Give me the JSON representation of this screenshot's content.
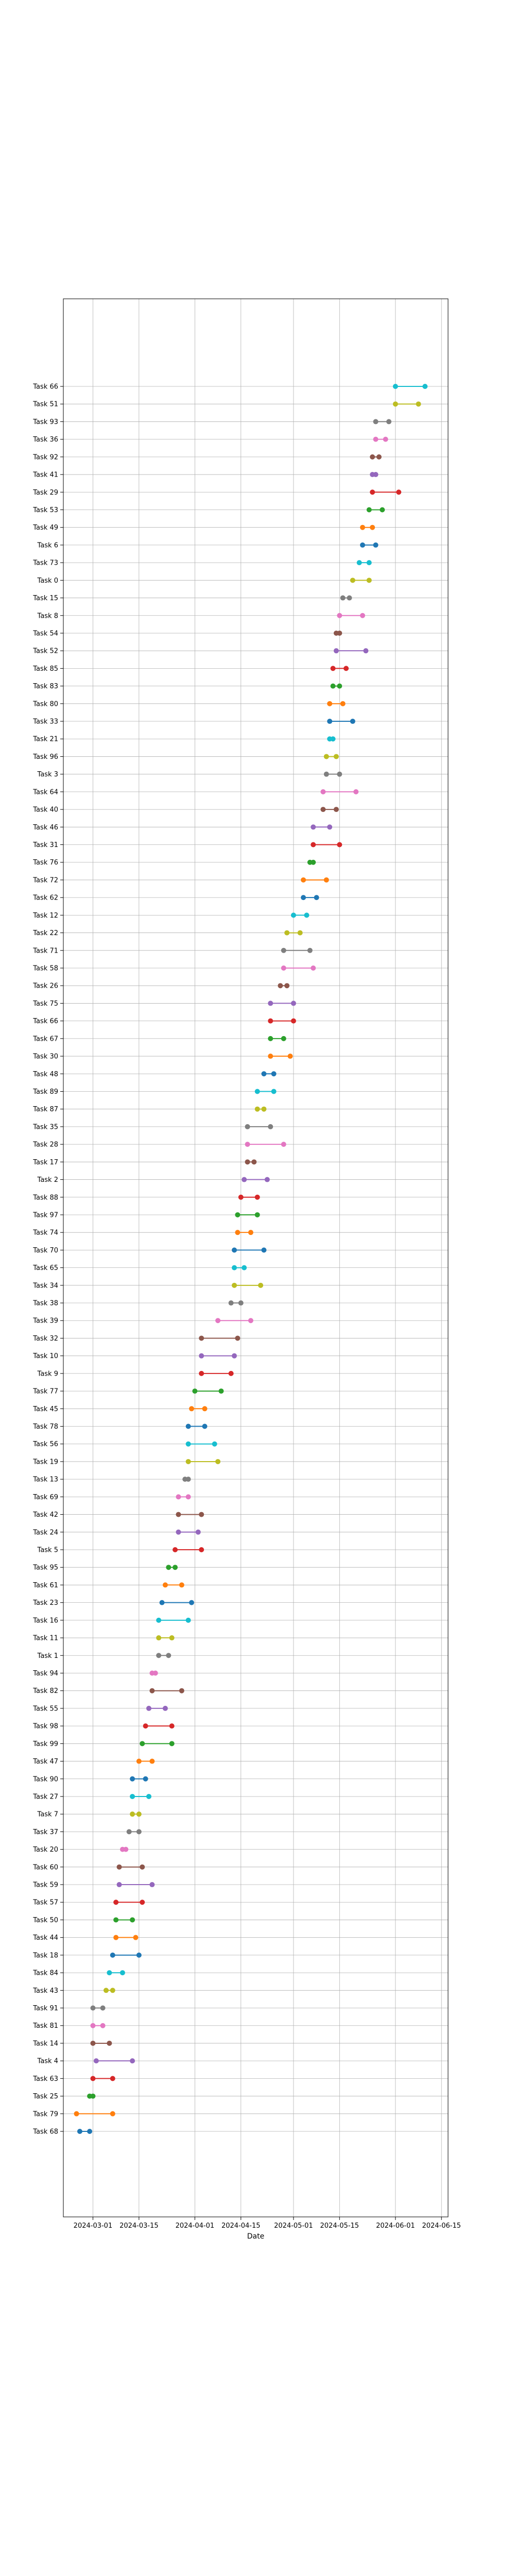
{
  "chart_data": {
    "type": "dumbbell",
    "title": "",
    "xlabel": "Date",
    "ylabel": "",
    "grid": true,
    "legend": "none",
    "x_axis": {
      "scale": "date",
      "range": [
        "2024-02-21",
        "2024-06-17"
      ],
      "ticks": [
        {
          "value": "2024-03-01",
          "label": "2024-03-01"
        },
        {
          "value": "2024-03-15",
          "label": "2024-03-15"
        },
        {
          "value": "2024-04-01",
          "label": "2024-04-01"
        },
        {
          "value": "2024-04-15",
          "label": "2024-04-15"
        },
        {
          "value": "2024-05-01",
          "label": "2024-05-01"
        },
        {
          "value": "2024-05-15",
          "label": "2024-05-15"
        },
        {
          "value": "2024-06-01",
          "label": "2024-06-01"
        },
        {
          "value": "2024-06-15",
          "label": "2024-06-15"
        }
      ]
    },
    "palette": [
      "#1f77b4",
      "#ff7f0e",
      "#2ca02c",
      "#d62728",
      "#9467bd",
      "#8c564b",
      "#e377c2",
      "#7f7f7f",
      "#bcbd22",
      "#17becf"
    ],
    "tasks": [
      {
        "name": "Task 66",
        "start": "2024-06-01",
        "end": "2024-06-10"
      },
      {
        "name": "Task 51",
        "start": "2024-06-01",
        "end": "2024-06-08"
      },
      {
        "name": "Task 93",
        "start": "2024-05-26",
        "end": "2024-05-30"
      },
      {
        "name": "Task 36",
        "start": "2024-05-26",
        "end": "2024-05-29"
      },
      {
        "name": "Task 92",
        "start": "2024-05-25",
        "end": "2024-05-27"
      },
      {
        "name": "Task 41",
        "start": "2024-05-25",
        "end": "2024-05-26"
      },
      {
        "name": "Task 29",
        "start": "2024-05-25",
        "end": "2024-06-02"
      },
      {
        "name": "Task 53",
        "start": "2024-05-24",
        "end": "2024-05-28"
      },
      {
        "name": "Task 49",
        "start": "2024-05-22",
        "end": "2024-05-25"
      },
      {
        "name": "Task 6",
        "start": "2024-05-22",
        "end": "2024-05-26"
      },
      {
        "name": "Task 73",
        "start": "2024-05-21",
        "end": "2024-05-24"
      },
      {
        "name": "Task 0",
        "start": "2024-05-19",
        "end": "2024-05-24"
      },
      {
        "name": "Task 15",
        "start": "2024-05-16",
        "end": "2024-05-18"
      },
      {
        "name": "Task 8",
        "start": "2024-05-15",
        "end": "2024-05-22"
      },
      {
        "name": "Task 54",
        "start": "2024-05-14",
        "end": "2024-05-15"
      },
      {
        "name": "Task 52",
        "start": "2024-05-14",
        "end": "2024-05-23"
      },
      {
        "name": "Task 85",
        "start": "2024-05-13",
        "end": "2024-05-17"
      },
      {
        "name": "Task 83",
        "start": "2024-05-13",
        "end": "2024-05-15"
      },
      {
        "name": "Task 80",
        "start": "2024-05-12",
        "end": "2024-05-16"
      },
      {
        "name": "Task 33",
        "start": "2024-05-12",
        "end": "2024-05-19"
      },
      {
        "name": "Task 21",
        "start": "2024-05-12",
        "end": "2024-05-13"
      },
      {
        "name": "Task 96",
        "start": "2024-05-11",
        "end": "2024-05-14"
      },
      {
        "name": "Task 3",
        "start": "2024-05-11",
        "end": "2024-05-15"
      },
      {
        "name": "Task 64",
        "start": "2024-05-10",
        "end": "2024-05-20"
      },
      {
        "name": "Task 40",
        "start": "2024-05-10",
        "end": "2024-05-14"
      },
      {
        "name": "Task 46",
        "start": "2024-05-07",
        "end": "2024-05-12"
      },
      {
        "name": "Task 31",
        "start": "2024-05-07",
        "end": "2024-05-15"
      },
      {
        "name": "Task 76",
        "start": "2024-05-06",
        "end": "2024-05-07"
      },
      {
        "name": "Task 72",
        "start": "2024-05-04",
        "end": "2024-05-11"
      },
      {
        "name": "Task 62",
        "start": "2024-05-04",
        "end": "2024-05-08"
      },
      {
        "name": "Task 12",
        "start": "2024-05-01",
        "end": "2024-05-05"
      },
      {
        "name": "Task 22",
        "start": "2024-04-29",
        "end": "2024-05-03"
      },
      {
        "name": "Task 71",
        "start": "2024-04-28",
        "end": "2024-05-06"
      },
      {
        "name": "Task 58",
        "start": "2024-04-28",
        "end": "2024-05-07"
      },
      {
        "name": "Task 26",
        "start": "2024-04-27",
        "end": "2024-04-29"
      },
      {
        "name": "Task 75",
        "start": "2024-04-24",
        "end": "2024-05-01"
      },
      {
        "name": "Task 66",
        "start": "2024-04-24",
        "end": "2024-05-01"
      },
      {
        "name": "Task 67",
        "start": "2024-04-24",
        "end": "2024-04-28"
      },
      {
        "name": "Task 30",
        "start": "2024-04-24",
        "end": "2024-04-30"
      },
      {
        "name": "Task 48",
        "start": "2024-04-22",
        "end": "2024-04-25"
      },
      {
        "name": "Task 89",
        "start": "2024-04-20",
        "end": "2024-04-25"
      },
      {
        "name": "Task 87",
        "start": "2024-04-20",
        "end": "2024-04-22"
      },
      {
        "name": "Task 35",
        "start": "2024-04-17",
        "end": "2024-04-24"
      },
      {
        "name": "Task 28",
        "start": "2024-04-17",
        "end": "2024-04-28"
      },
      {
        "name": "Task 17",
        "start": "2024-04-17",
        "end": "2024-04-19"
      },
      {
        "name": "Task 2",
        "start": "2024-04-16",
        "end": "2024-04-23"
      },
      {
        "name": "Task 88",
        "start": "2024-04-15",
        "end": "2024-04-20"
      },
      {
        "name": "Task 97",
        "start": "2024-04-14",
        "end": "2024-04-20"
      },
      {
        "name": "Task 74",
        "start": "2024-04-14",
        "end": "2024-04-18"
      },
      {
        "name": "Task 70",
        "start": "2024-04-13",
        "end": "2024-04-22"
      },
      {
        "name": "Task 65",
        "start": "2024-04-13",
        "end": "2024-04-16"
      },
      {
        "name": "Task 34",
        "start": "2024-04-13",
        "end": "2024-04-21"
      },
      {
        "name": "Task 38",
        "start": "2024-04-12",
        "end": "2024-04-15"
      },
      {
        "name": "Task 39",
        "start": "2024-04-08",
        "end": "2024-04-18"
      },
      {
        "name": "Task 32",
        "start": "2024-04-03",
        "end": "2024-04-14"
      },
      {
        "name": "Task 10",
        "start": "2024-04-03",
        "end": "2024-04-13"
      },
      {
        "name": "Task 9",
        "start": "2024-04-03",
        "end": "2024-04-12"
      },
      {
        "name": "Task 77",
        "start": "2024-04-01",
        "end": "2024-04-09"
      },
      {
        "name": "Task 45",
        "start": "2024-03-31",
        "end": "2024-04-04"
      },
      {
        "name": "Task 78",
        "start": "2024-03-30",
        "end": "2024-04-04"
      },
      {
        "name": "Task 56",
        "start": "2024-03-30",
        "end": "2024-04-07"
      },
      {
        "name": "Task 19",
        "start": "2024-03-30",
        "end": "2024-04-08"
      },
      {
        "name": "Task 13",
        "start": "2024-03-29",
        "end": "2024-03-30"
      },
      {
        "name": "Task 69",
        "start": "2024-03-27",
        "end": "2024-03-30"
      },
      {
        "name": "Task 42",
        "start": "2024-03-27",
        "end": "2024-04-03"
      },
      {
        "name": "Task 24",
        "start": "2024-03-27",
        "end": "2024-04-02"
      },
      {
        "name": "Task 5",
        "start": "2024-03-26",
        "end": "2024-04-03"
      },
      {
        "name": "Task 95",
        "start": "2024-03-24",
        "end": "2024-03-26"
      },
      {
        "name": "Task 61",
        "start": "2024-03-23",
        "end": "2024-03-28"
      },
      {
        "name": "Task 23",
        "start": "2024-03-22",
        "end": "2024-03-31"
      },
      {
        "name": "Task 16",
        "start": "2024-03-21",
        "end": "2024-03-30"
      },
      {
        "name": "Task 11",
        "start": "2024-03-21",
        "end": "2024-03-25"
      },
      {
        "name": "Task 1",
        "start": "2024-03-21",
        "end": "2024-03-24"
      },
      {
        "name": "Task 94",
        "start": "2024-03-19",
        "end": "2024-03-20"
      },
      {
        "name": "Task 82",
        "start": "2024-03-19",
        "end": "2024-03-28"
      },
      {
        "name": "Task 55",
        "start": "2024-03-18",
        "end": "2024-03-23"
      },
      {
        "name": "Task 98",
        "start": "2024-03-17",
        "end": "2024-03-25"
      },
      {
        "name": "Task 99",
        "start": "2024-03-16",
        "end": "2024-03-25"
      },
      {
        "name": "Task 47",
        "start": "2024-03-15",
        "end": "2024-03-19"
      },
      {
        "name": "Task 90",
        "start": "2024-03-13",
        "end": "2024-03-17"
      },
      {
        "name": "Task 27",
        "start": "2024-03-13",
        "end": "2024-03-18"
      },
      {
        "name": "Task 7",
        "start": "2024-03-13",
        "end": "2024-03-15"
      },
      {
        "name": "Task 37",
        "start": "2024-03-12",
        "end": "2024-03-15"
      },
      {
        "name": "Task 20",
        "start": "2024-03-10",
        "end": "2024-03-11"
      },
      {
        "name": "Task 60",
        "start": "2024-03-09",
        "end": "2024-03-16"
      },
      {
        "name": "Task 59",
        "start": "2024-03-09",
        "end": "2024-03-19"
      },
      {
        "name": "Task 57",
        "start": "2024-03-08",
        "end": "2024-03-16"
      },
      {
        "name": "Task 50",
        "start": "2024-03-08",
        "end": "2024-03-13"
      },
      {
        "name": "Task 44",
        "start": "2024-03-08",
        "end": "2024-03-14"
      },
      {
        "name": "Task 18",
        "start": "2024-03-07",
        "end": "2024-03-15"
      },
      {
        "name": "Task 84",
        "start": "2024-03-06",
        "end": "2024-03-10"
      },
      {
        "name": "Task 43",
        "start": "2024-03-05",
        "end": "2024-03-07"
      },
      {
        "name": "Task 91",
        "start": "2024-03-01",
        "end": "2024-03-04"
      },
      {
        "name": "Task 81",
        "start": "2024-03-01",
        "end": "2024-03-04"
      },
      {
        "name": "Task 14",
        "start": "2024-03-01",
        "end": "2024-03-06"
      },
      {
        "name": "Task 4",
        "start": "2024-03-02",
        "end": "2024-03-13"
      },
      {
        "name": "Task 63",
        "start": "2024-03-01",
        "end": "2024-03-07"
      },
      {
        "name": "Task 25",
        "start": "2024-02-29",
        "end": "2024-03-01"
      },
      {
        "name": "Task 79",
        "start": "2024-02-25",
        "end": "2024-03-07"
      },
      {
        "name": "Task 68",
        "start": "2024-02-26",
        "end": "2024-02-29"
      }
    ]
  }
}
